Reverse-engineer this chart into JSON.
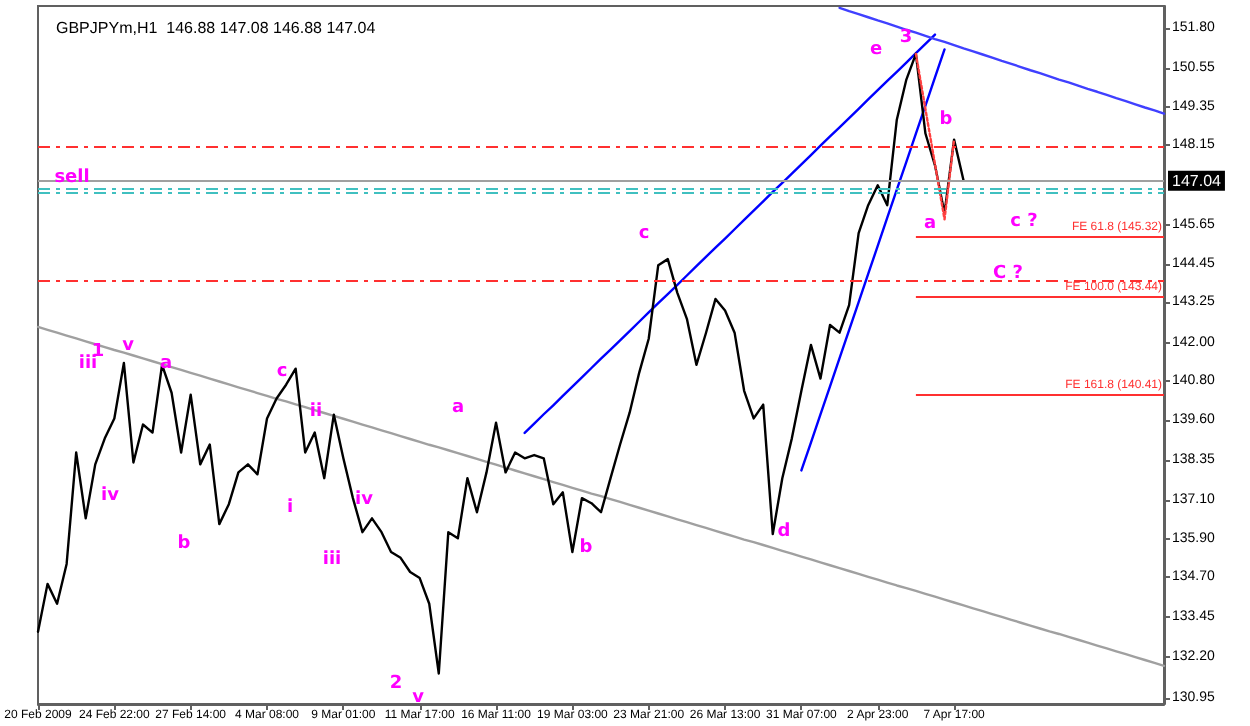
{
  "chart_data": {
    "type": "line",
    "title": "GBPJPYm,H1  146.88 147.08 146.88 147.04",
    "categories": [
      "20 Feb 2009",
      null,
      null,
      null,
      null,
      null,
      null,
      null,
      "24 Feb 22:00",
      null,
      null,
      null,
      null,
      null,
      null,
      null,
      "27 Feb 14:00",
      null,
      null,
      null,
      null,
      null,
      null,
      null,
      "4 Mar 08:00",
      null,
      null,
      null,
      null,
      null,
      null,
      null,
      "9 Mar 01:00",
      null,
      null,
      null,
      null,
      null,
      null,
      null,
      "11 Mar 17:00",
      null,
      null,
      null,
      null,
      null,
      null,
      null,
      "16 Mar 11:00",
      null,
      null,
      null,
      null,
      null,
      null,
      null,
      "19 Mar 03:00",
      null,
      null,
      null,
      null,
      null,
      null,
      null,
      "23 Mar 21:00",
      null,
      null,
      null,
      null,
      null,
      null,
      null,
      "26 Mar 13:00",
      null,
      null,
      null,
      null,
      null,
      null,
      null,
      "31 Mar 07:00",
      null,
      null,
      null,
      null,
      null,
      null,
      null,
      "2 Apr 23:00",
      null,
      null,
      null,
      null,
      null,
      null,
      null,
      "7 Apr 17:00",
      null,
      null,
      null,
      null,
      null,
      null,
      null,
      null,
      null,
      null,
      null,
      null,
      null,
      null,
      null,
      null,
      null,
      null,
      null,
      null,
      null,
      null
    ],
    "ylim": [
      130.75,
      152.48
    ],
    "yticks": [
      130.95,
      {
        "value": 132.2,
        "label": "132.20"
      },
      133.45,
      {
        "value": 134.7,
        "label": "134.70"
      },
      {
        "value": 135.9,
        "label": "135.90"
      },
      {
        "value": 137.1,
        "label": "137.10"
      },
      138.35,
      {
        "value": 139.6,
        "label": "139.60"
      },
      {
        "value": 140.8,
        "label": "140.80"
      },
      {
        "value": 142,
        "label": "142.00"
      },
      143.25,
      144.45,
      145.65,
      148.15,
      149.35,
      150.55,
      {
        "value": 151.8,
        "label": "151.80"
      }
    ],
    "grid": false,
    "marker": "none",
    "series": [
      {
        "color": "#000000",
        "values": [
          133.0,
          134.49,
          133.87,
          135.11,
          138.58,
          136.53,
          138.21,
          139.02,
          139.64,
          141.37,
          138.27,
          139.45,
          139.2,
          141.31,
          140.44,
          138.58,
          140.38,
          138.21,
          138.83,
          136.35,
          136.97,
          137.96,
          138.21,
          137.9,
          139.64,
          140.26,
          140.69,
          141.19,
          138.58,
          139.2,
          137.78,
          139.76,
          138.4,
          137.16,
          136.1,
          136.53,
          136.1,
          135.48,
          135.3,
          134.86,
          134.67,
          133.87,
          131.7,
          136.1,
          135.91,
          137.78,
          136.72,
          137.96,
          139.51,
          137.96,
          138.58,
          138.4,
          138.5,
          138.4,
          136.97,
          137.34,
          135.48,
          137.16,
          137.0,
          136.72,
          137.78,
          138.83,
          139.82,
          141.06,
          142.12,
          144.41,
          144.6,
          143.55,
          142.74,
          141.31,
          142.3,
          143.36,
          143.0,
          142.31,
          140.5,
          139.64,
          140.07,
          136.04,
          137.78,
          139.02,
          140.5,
          141.93,
          140.88,
          142.55,
          142.31,
          143.17,
          145.41,
          146.28,
          146.9,
          146.28,
          148.94,
          150.19,
          150.99,
          148.51,
          147.52,
          146.03,
          148.32,
          147.04,
          null,
          null,
          null,
          null,
          null,
          null,
          null,
          null,
          null,
          null,
          null,
          null,
          null,
          null,
          null,
          null,
          null,
          null,
          null,
          null,
          null
        ]
      },
      {
        "color": "#a0a0a0",
        "values": [
          142.49,
          142.4,
          142.31,
          142.22,
          142.13,
          142.04,
          141.95,
          141.86,
          141.77,
          141.69,
          141.6,
          141.51,
          141.42,
          141.33,
          141.24,
          141.15,
          141.06,
          140.97,
          140.88,
          140.79,
          140.7,
          140.61,
          140.52,
          140.43,
          140.34,
          140.25,
          140.17,
          140.08,
          139.99,
          139.9,
          139.81,
          139.72,
          139.63,
          139.54,
          139.45,
          139.36,
          139.27,
          139.18,
          139.09,
          139.0,
          138.91,
          138.82,
          138.74,
          138.65,
          138.56,
          138.47,
          138.38,
          138.29,
          138.2,
          138.11,
          138.02,
          137.93,
          137.84,
          137.75,
          137.66,
          137.57,
          137.48,
          137.39,
          137.3,
          137.22,
          137.13,
          137.04,
          136.95,
          136.86,
          136.77,
          136.68,
          136.59,
          136.5,
          136.41,
          136.32,
          136.23,
          136.14,
          136.05,
          135.96,
          135.87,
          135.79,
          135.7,
          135.61,
          135.52,
          135.43,
          135.34,
          135.25,
          135.16,
          135.07,
          134.98,
          134.89,
          134.8,
          134.71,
          134.62,
          134.53,
          134.44,
          134.36,
          134.27,
          134.18,
          134.09,
          134.0,
          133.91,
          133.82,
          133.73,
          133.64,
          133.55,
          133.46,
          133.37,
          133.28,
          133.19,
          133.1,
          133.01,
          132.93,
          132.84,
          132.75,
          132.66,
          132.57,
          132.48,
          132.39,
          132.3,
          132.21,
          132.12,
          132.03,
          131.94
        ]
      },
      {
        "color": "#0000ff",
        "values": [
          null,
          null,
          null,
          null,
          null,
          null,
          null,
          null,
          null,
          null,
          null,
          null,
          null,
          null,
          null,
          null,
          null,
          null,
          null,
          null,
          null,
          null,
          null,
          null,
          null,
          null,
          null,
          null,
          null,
          null,
          null,
          null,
          null,
          null,
          null,
          null,
          null,
          null,
          null,
          null,
          null,
          null,
          null,
          null,
          null,
          null,
          null,
          null,
          null,
          null,
          null,
          139.19,
          139.48,
          139.77,
          140.05,
          140.34,
          140.63,
          140.92,
          141.21,
          141.5,
          141.78,
          142.07,
          142.36,
          142.65,
          142.94,
          143.23,
          143.51,
          143.8,
          144.09,
          144.38,
          144.67,
          144.96,
          145.24,
          145.53,
          145.82,
          146.11,
          146.4,
          146.69,
          146.97,
          147.26,
          147.55,
          147.84,
          148.13,
          148.42,
          148.7,
          148.99,
          149.28,
          149.57,
          149.86,
          150.15,
          150.43,
          150.72,
          151.01,
          151.3,
          151.59,
          null,
          null,
          null,
          null,
          null,
          null,
          null,
          null,
          null,
          null,
          null,
          null,
          null,
          null,
          null,
          null,
          null,
          null,
          null,
          null,
          null,
          null,
          null,
          null
        ]
      },
      {
        "color": "#0000ff",
        "values": [
          null,
          null,
          null,
          null,
          null,
          null,
          null,
          null,
          null,
          null,
          null,
          null,
          null,
          null,
          null,
          null,
          null,
          null,
          null,
          null,
          null,
          null,
          null,
          null,
          null,
          null,
          null,
          null,
          null,
          null,
          null,
          null,
          null,
          null,
          null,
          null,
          null,
          null,
          null,
          null,
          null,
          null,
          null,
          null,
          null,
          null,
          null,
          null,
          null,
          null,
          null,
          null,
          null,
          null,
          null,
          null,
          null,
          null,
          null,
          null,
          null,
          null,
          null,
          null,
          null,
          null,
          null,
          null,
          null,
          null,
          null,
          null,
          null,
          null,
          null,
          null,
          null,
          null,
          null,
          null,
          138.02,
          138.89,
          139.77,
          140.64,
          141.52,
          142.39,
          143.26,
          144.14,
          145.01,
          145.89,
          146.76,
          147.63,
          148.51,
          149.38,
          150.26,
          151.13,
          null,
          null,
          null,
          null,
          null,
          null,
          null,
          null,
          null,
          null,
          null,
          null,
          null,
          null,
          null,
          null,
          null,
          null,
          null,
          null,
          null,
          null,
          null
        ]
      },
      {
        "color": "#4040ff",
        "values": [
          null,
          null,
          null,
          null,
          null,
          null,
          null,
          null,
          null,
          null,
          null,
          null,
          null,
          null,
          null,
          null,
          null,
          null,
          null,
          null,
          null,
          null,
          null,
          null,
          null,
          null,
          null,
          null,
          null,
          null,
          null,
          null,
          null,
          null,
          null,
          null,
          null,
          null,
          null,
          null,
          null,
          null,
          null,
          null,
          null,
          null,
          null,
          null,
          null,
          null,
          null,
          null,
          null,
          null,
          null,
          null,
          null,
          null,
          null,
          null,
          null,
          null,
          null,
          null,
          null,
          null,
          null,
          null,
          null,
          null,
          null,
          null,
          null,
          null,
          null,
          null,
          null,
          null,
          null,
          null,
          null,
          null,
          null,
          null,
          152.42,
          152.32,
          152.23,
          152.13,
          152.03,
          151.94,
          151.84,
          151.74,
          151.65,
          151.55,
          151.45,
          151.36,
          151.26,
          151.16,
          151.07,
          150.97,
          150.87,
          150.77,
          150.68,
          150.58,
          150.48,
          150.39,
          150.29,
          150.19,
          150.1,
          150.0,
          149.9,
          149.81,
          149.71,
          149.61,
          149.52,
          149.42,
          149.32,
          149.23,
          149.13
        ]
      },
      {
        "color": "#ff4040",
        "line_style": "dotted",
        "values": [
          null,
          null,
          null,
          null,
          null,
          null,
          null,
          null,
          null,
          null,
          null,
          null,
          null,
          null,
          null,
          null,
          null,
          null,
          null,
          null,
          null,
          null,
          null,
          null,
          null,
          null,
          null,
          null,
          null,
          null,
          null,
          null,
          null,
          null,
          null,
          null,
          null,
          null,
          null,
          null,
          null,
          null,
          null,
          null,
          null,
          null,
          null,
          null,
          null,
          null,
          null,
          null,
          null,
          null,
          null,
          null,
          null,
          null,
          null,
          null,
          null,
          null,
          null,
          null,
          null,
          null,
          null,
          null,
          null,
          null,
          null,
          null,
          null,
          null,
          null,
          null,
          null,
          null,
          null,
          null,
          null,
          null,
          null,
          null,
          null,
          null,
          null,
          null,
          null,
          null,
          null,
          null,
          150.99,
          149.27,
          147.56,
          145.84,
          148.32,
          null,
          null,
          null,
          null,
          null,
          null,
          null,
          null,
          null,
          null,
          null,
          null,
          null,
          null,
          null,
          null,
          null,
          null,
          null,
          null,
          null,
          null
        ]
      }
    ],
    "ref_lines": [
      {
        "axis": "y",
        "value": 147.04,
        "label": "147.04",
        "color": "#a0a0a0"
      },
      {
        "axis": "y",
        "value": 148.1,
        "color": "#ff3030",
        "line_style": "dashed"
      },
      {
        "axis": "y",
        "value": 143.92,
        "color": "#ff3030",
        "line_style": "dashed"
      },
      {
        "axis": "y",
        "value": 146.82,
        "color": "#40c0c0",
        "line_style": "dashed"
      },
      {
        "axis": "y",
        "value": 146.65,
        "color": "#40c0c0",
        "line_style": "dashed"
      },
      {
        "axis": "y",
        "value": 145.32,
        "label": "FE 61.8 (145.32)",
        "color": "#ff3030",
        "line_style": "solid"
      },
      {
        "axis": "y",
        "value": 143.44,
        "label": "FE 100.0 (143.44)",
        "color": "#ff3030",
        "line_style": "solid"
      },
      {
        "axis": "y",
        "value": 140.41,
        "label": "FE 161.8 (140.41)",
        "color": "#ff3030",
        "line_style": "solid"
      }
    ],
    "annotations": [
      "1",
      "iii",
      "v",
      "a",
      "iv",
      "b",
      "c",
      "ii",
      "i",
      "iii",
      "iv",
      "v",
      "2",
      "a",
      "b",
      "c",
      "d",
      "e",
      {
        "text": "3",
        "y": 150.99
      },
      "b",
      "a",
      "c ?",
      "C ?",
      "sell"
    ]
  }
}
